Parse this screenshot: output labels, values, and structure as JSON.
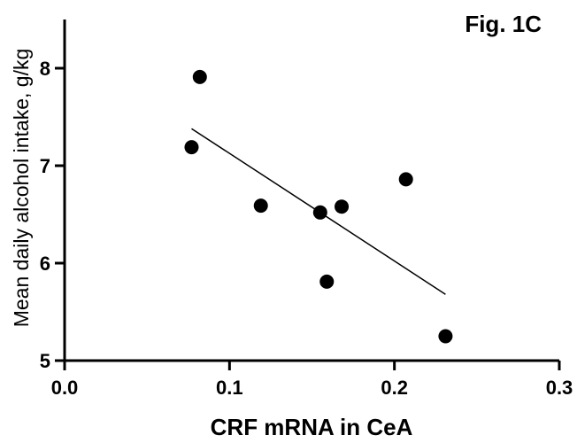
{
  "chart_data": {
    "type": "scatter",
    "title": "Fig. 1C",
    "xlabel": "CRF mRNA in CeA",
    "ylabel": "Mean daily alcohol intake, g/kg",
    "xlim": [
      0.0,
      0.3
    ],
    "ylim": [
      5,
      8.5
    ],
    "xticks": [
      "0.0",
      "0.1",
      "0.2",
      "0.3"
    ],
    "yticks": [
      "5",
      "6",
      "7",
      "8"
    ],
    "grid": false,
    "points": [
      {
        "x": 0.082,
        "y": 7.91
      },
      {
        "x": 0.077,
        "y": 7.19
      },
      {
        "x": 0.119,
        "y": 6.59
      },
      {
        "x": 0.155,
        "y": 6.52
      },
      {
        "x": 0.168,
        "y": 6.58
      },
      {
        "x": 0.159,
        "y": 5.81
      },
      {
        "x": 0.207,
        "y": 6.86
      },
      {
        "x": 0.231,
        "y": 5.25
      }
    ],
    "regression_line": {
      "x": [
        0.077,
        0.231
      ],
      "y": [
        7.38,
        5.68
      ]
    }
  }
}
